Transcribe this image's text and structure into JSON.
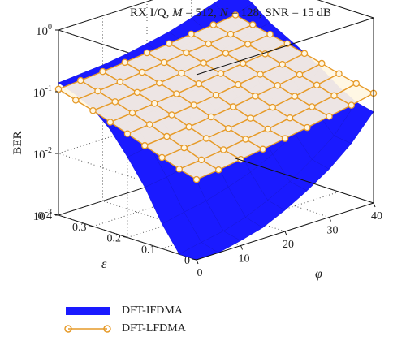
{
  "figure": {
    "title_parts": [
      "RX I/Q, ",
      "M",
      " = 512, ",
      "N",
      " = 128, SNR = 15 dB"
    ]
  },
  "chart_data": {
    "type": "surface",
    "title": "RX I/Q, M = 512, N = 128, SNR = 15 dB",
    "zlabel": "BER",
    "xlabel": "φ",
    "ylabel": "ε",
    "zscale": "log",
    "zlim": [
      0.001,
      1
    ],
    "z_ticks": [
      "10^0",
      "10^-1",
      "10^-2",
      "10^-3"
    ],
    "x_ticks": [
      "0",
      "10",
      "20",
      "30",
      "40"
    ],
    "y_ticks": [
      "0",
      "0.1",
      "0.2",
      "0.3",
      "0.4"
    ],
    "xlim": [
      0,
      40
    ],
    "ylim": [
      0,
      0.4
    ],
    "grid": true,
    "legend_position": "bottom-left",
    "phi": [
      0,
      5,
      10,
      15,
      20,
      25,
      30,
      35,
      40
    ],
    "epsilon": [
      0,
      0.05,
      0.1,
      0.15,
      0.2,
      0.25,
      0.3,
      0.35,
      0.4
    ],
    "series": [
      {
        "name": "DFT-IFDMA",
        "color": "#1a1aff",
        "z_by_epsilon": [
          [
            0.0009,
            0.001,
            0.0012,
            0.0015,
            0.0022,
            0.0035,
            0.006,
            0.012,
            0.03
          ],
          [
            0.001,
            0.0012,
            0.0014,
            0.0018,
            0.0026,
            0.004,
            0.007,
            0.013,
            0.035
          ],
          [
            0.0025,
            0.003,
            0.0035,
            0.0045,
            0.006,
            0.009,
            0.015,
            0.025,
            0.05
          ],
          [
            0.008,
            0.009,
            0.011,
            0.014,
            0.018,
            0.025,
            0.035,
            0.05,
            0.08
          ],
          [
            0.02,
            0.023,
            0.027,
            0.033,
            0.04,
            0.05,
            0.065,
            0.09,
            0.12
          ],
          [
            0.045,
            0.05,
            0.055,
            0.065,
            0.075,
            0.09,
            0.11,
            0.14,
            0.17
          ],
          [
            0.08,
            0.085,
            0.09,
            0.1,
            0.12,
            0.14,
            0.16,
            0.2,
            0.24
          ],
          [
            0.11,
            0.12,
            0.13,
            0.14,
            0.16,
            0.19,
            0.23,
            0.3,
            0.4
          ],
          [
            0.14,
            0.15,
            0.16,
            0.18,
            0.21,
            0.25,
            0.32,
            0.42,
            0.55
          ]
        ]
      },
      {
        "name": "DFT-LFDMA",
        "color": "#e69a28",
        "z_by_epsilon": [
          [
            0.02,
            0.022,
            0.025,
            0.028,
            0.032,
            0.037,
            0.043,
            0.05,
            0.06
          ],
          [
            0.024,
            0.026,
            0.029,
            0.033,
            0.037,
            0.043,
            0.05,
            0.058,
            0.07
          ],
          [
            0.03,
            0.033,
            0.036,
            0.04,
            0.045,
            0.052,
            0.06,
            0.07,
            0.082
          ],
          [
            0.038,
            0.041,
            0.045,
            0.05,
            0.056,
            0.064,
            0.073,
            0.084,
            0.098
          ],
          [
            0.048,
            0.052,
            0.057,
            0.063,
            0.07,
            0.08,
            0.09,
            0.1,
            0.115
          ],
          [
            0.06,
            0.065,
            0.071,
            0.078,
            0.087,
            0.098,
            0.11,
            0.12,
            0.135
          ],
          [
            0.075,
            0.08,
            0.087,
            0.095,
            0.105,
            0.118,
            0.13,
            0.14,
            0.155
          ],
          [
            0.09,
            0.097,
            0.105,
            0.115,
            0.127,
            0.14,
            0.15,
            0.165,
            0.18
          ],
          [
            0.11,
            0.117,
            0.125,
            0.135,
            0.148,
            0.16,
            0.175,
            0.19,
            0.21
          ]
        ]
      }
    ]
  }
}
